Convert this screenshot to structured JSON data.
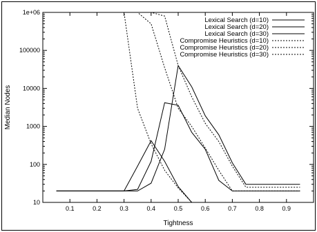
{
  "chart_data": {
    "type": "line",
    "xlabel": "Tightness",
    "ylabel": "Median Nodes",
    "xlim": [
      0.0,
      1.0
    ],
    "ylim": [
      10,
      1000000
    ],
    "yscale": "log",
    "grid": false,
    "legend_position": "top-right",
    "xticks": [
      0.1,
      0.2,
      0.3,
      0.4,
      0.5,
      0.6,
      0.7,
      0.8,
      0.9
    ],
    "xtick_labels": [
      "0.1",
      "0.2",
      "0.3",
      "0.4",
      "0.5",
      "0.6",
      "0.7",
      "0.8",
      "0.9"
    ],
    "yticks": [
      10,
      100,
      1000,
      10000,
      100000,
      1000000
    ],
    "ytick_labels": [
      "10",
      "100",
      "1000",
      "10000",
      "100000",
      "1e+06"
    ],
    "series": [
      {
        "name": "Lexical Search (d=10)",
        "style": "solid",
        "x": [
          0.05,
          0.3,
          0.35,
          0.4,
          0.45,
          0.5,
          0.55
        ],
        "y": [
          20,
          20,
          90,
          420,
          120,
          26,
          10
        ]
      },
      {
        "name": "Lexical Search (d=20)",
        "style": "solid",
        "x": [
          0.05,
          0.3,
          0.35,
          0.4,
          0.45,
          0.5,
          0.55,
          0.6,
          0.65,
          0.7,
          0.95
        ],
        "y": [
          20,
          20,
          22,
          120,
          4200,
          3600,
          700,
          250,
          38,
          20,
          20
        ]
      },
      {
        "name": "Lexical Search (d=30)",
        "style": "solid",
        "x": [
          0.05,
          0.35,
          0.4,
          0.45,
          0.5,
          0.55,
          0.6,
          0.65,
          0.7,
          0.75,
          0.95
        ],
        "y": [
          20,
          20,
          32,
          250,
          40000,
          11000,
          1900,
          600,
          110,
          30,
          30
        ]
      },
      {
        "name": "Compromise Heuristics (d=10)",
        "style": "dotted",
        "x": [
          0.05,
          0.3,
          0.35,
          0.4,
          0.45,
          0.5,
          0.55
        ],
        "y": [
          1000000,
          1000000,
          3000,
          350,
          70,
          24,
          10
        ]
      },
      {
        "name": "Compromise Heuristics (d=20)",
        "style": "dotted",
        "x": [
          0.05,
          0.35,
          0.4,
          0.45,
          0.5,
          0.55,
          0.6,
          0.65,
          0.7,
          0.95
        ],
        "y": [
          1000000,
          1000000,
          500000,
          35000,
          3000,
          1000,
          270,
          70,
          20,
          20
        ]
      },
      {
        "name": "Compromise Heuristics (d=30)",
        "style": "dotted",
        "x": [
          0.05,
          0.4,
          0.45,
          0.5,
          0.55,
          0.6,
          0.65,
          0.7,
          0.75,
          0.95
        ],
        "y": [
          1000000,
          1000000,
          800000,
          40000,
          6000,
          1200,
          400,
          90,
          25,
          25
        ]
      }
    ]
  }
}
